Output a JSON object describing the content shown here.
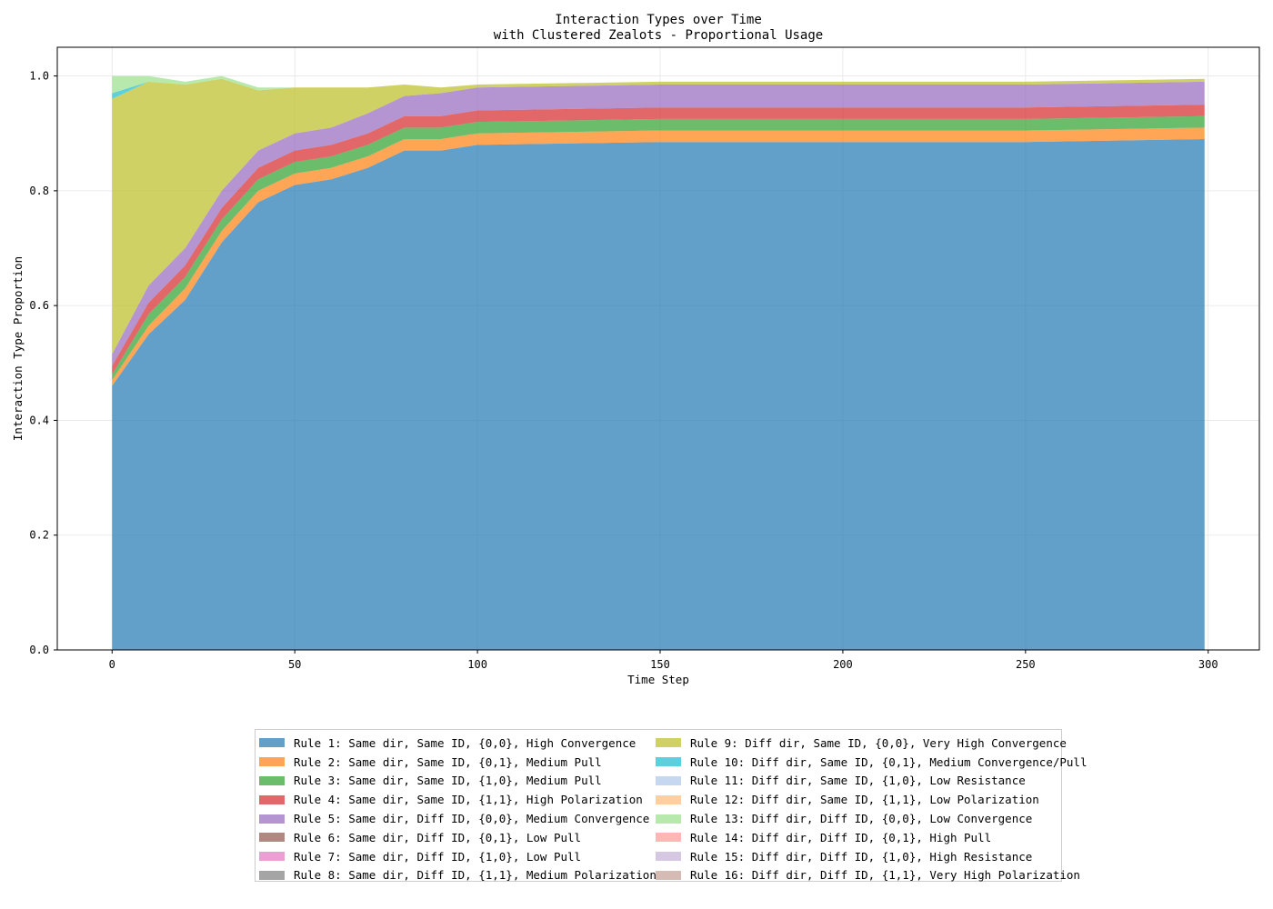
{
  "chart_data": {
    "type": "area",
    "title": "Interaction Types over Time\nwith Clustered Zealots - Proportional Usage",
    "title_lines": [
      "Interaction Types over Time",
      "with Clustered Zealots - Proportional Usage"
    ],
    "xlabel": "Time Step",
    "ylabel": "Interaction Type Proportion",
    "xlim": [
      -15,
      314
    ],
    "ylim": [
      0,
      1.05
    ],
    "xticks": [
      0,
      50,
      100,
      150,
      200,
      250,
      300
    ],
    "yticks": [
      "0.0",
      "0.2",
      "0.4",
      "0.6",
      "0.8",
      "1.0"
    ],
    "grid": true,
    "legend_position": "bottom-center",
    "x": [
      0,
      10,
      20,
      30,
      40,
      50,
      60,
      70,
      80,
      90,
      100,
      150,
      200,
      250,
      299
    ],
    "series": [
      {
        "name": "Rule 1: Same dir, Same ID, {0,0}, High Convergence",
        "color": "#1f77b4",
        "values": [
          0.46,
          0.55,
          0.61,
          0.71,
          0.78,
          0.81,
          0.82,
          0.84,
          0.87,
          0.87,
          0.88,
          0.885,
          0.885,
          0.885,
          0.89
        ]
      },
      {
        "name": "Rule 2: Same dir, Same ID, {0,1}, Medium Pull",
        "color": "#ff7f0e",
        "values": [
          0.01,
          0.015,
          0.02,
          0.02,
          0.02,
          0.02,
          0.02,
          0.02,
          0.02,
          0.02,
          0.02,
          0.02,
          0.02,
          0.02,
          0.02
        ]
      },
      {
        "name": "Rule 3: Same dir, Same ID, {1,0}, Medium Pull",
        "color": "#2ca02c",
        "values": [
          0.01,
          0.02,
          0.02,
          0.02,
          0.02,
          0.02,
          0.02,
          0.02,
          0.02,
          0.02,
          0.02,
          0.02,
          0.02,
          0.02,
          0.02
        ]
      },
      {
        "name": "Rule 4: Same dir, Same ID, {1,1}, High Polarization",
        "color": "#d62728",
        "values": [
          0.015,
          0.02,
          0.02,
          0.02,
          0.02,
          0.02,
          0.02,
          0.02,
          0.02,
          0.02,
          0.02,
          0.02,
          0.02,
          0.02,
          0.02
        ]
      },
      {
        "name": "Rule 5: Same dir, Diff ID, {0,0}, Medium Convergence",
        "color": "#9467bd",
        "values": [
          0.02,
          0.03,
          0.03,
          0.03,
          0.03,
          0.03,
          0.03,
          0.035,
          0.035,
          0.04,
          0.04,
          0.04,
          0.04,
          0.04,
          0.04
        ]
      },
      {
        "name": "Rule 6: Same dir, Diff ID, {0,1}, Low Pull",
        "color": "#8c564b",
        "values": [
          0,
          0,
          0,
          0,
          0,
          0,
          0,
          0,
          0,
          0,
          0,
          0,
          0,
          0,
          0
        ]
      },
      {
        "name": "Rule 7: Same dir, Diff ID, {1,0}, Low Pull",
        "color": "#e377c2",
        "values": [
          0,
          0,
          0,
          0,
          0,
          0,
          0,
          0,
          0,
          0,
          0,
          0,
          0,
          0,
          0
        ]
      },
      {
        "name": "Rule 8: Same dir, Diff ID, {1,1}, Medium Polarization",
        "color": "#7f7f7f",
        "values": [
          0,
          0,
          0,
          0,
          0,
          0,
          0,
          0,
          0,
          0,
          0,
          0,
          0,
          0,
          0
        ]
      },
      {
        "name": "Rule 9: Diff dir, Same ID, {0,0}, Very High Convergence",
        "color": "#bcbd22",
        "values": [
          0.445,
          0.355,
          0.285,
          0.195,
          0.105,
          0.08,
          0.07,
          0.045,
          0.02,
          0.01,
          0.005,
          0.005,
          0.005,
          0.005,
          0.005
        ]
      },
      {
        "name": "Rule 10: Diff dir, Same ID, {0,1}, Medium Convergence/Pull",
        "color": "#17becf",
        "values": [
          0.01,
          0,
          0,
          0,
          0,
          0,
          0,
          0,
          0,
          0,
          0,
          0,
          0,
          0,
          0
        ]
      },
      {
        "name": "Rule 11: Diff dir, Same ID, {1,0}, Low Resistance",
        "color": "#aec7e8",
        "values": [
          0,
          0,
          0,
          0,
          0,
          0,
          0,
          0,
          0,
          0,
          0,
          0,
          0,
          0,
          0
        ]
      },
      {
        "name": "Rule 12: Diff dir, Same ID, {1,1}, Low Polarization",
        "color": "#ffbb78",
        "values": [
          0,
          0,
          0,
          0,
          0,
          0,
          0,
          0,
          0,
          0,
          0,
          0,
          0,
          0,
          0
        ]
      },
      {
        "name": "Rule 13: Diff dir, Diff ID, {0,0}, Low Convergence",
        "color": "#98df8a",
        "values": [
          0.03,
          0.01,
          0.005,
          0.005,
          0.005,
          0,
          0,
          0,
          0,
          0,
          0,
          0,
          0,
          0,
          0
        ]
      },
      {
        "name": "Rule 14: Diff dir, Diff ID, {0,1}, High Pull",
        "color": "#ff9896",
        "values": [
          0,
          0,
          0,
          0,
          0,
          0,
          0,
          0,
          0,
          0,
          0,
          0,
          0,
          0,
          0
        ]
      },
      {
        "name": "Rule 15: Diff dir, Diff ID, {1,0}, High Resistance",
        "color": "#c5b0d5",
        "values": [
          0,
          0,
          0,
          0,
          0,
          0,
          0,
          0,
          0,
          0,
          0,
          0,
          0,
          0,
          0
        ]
      },
      {
        "name": "Rule 16: Diff dir, Diff ID, {1,1}, Very High Polarization",
        "color": "#c49c94",
        "values": [
          0,
          0,
          0,
          0,
          0,
          0,
          0,
          0,
          0,
          0,
          0,
          0,
          0,
          0,
          0
        ]
      }
    ]
  }
}
